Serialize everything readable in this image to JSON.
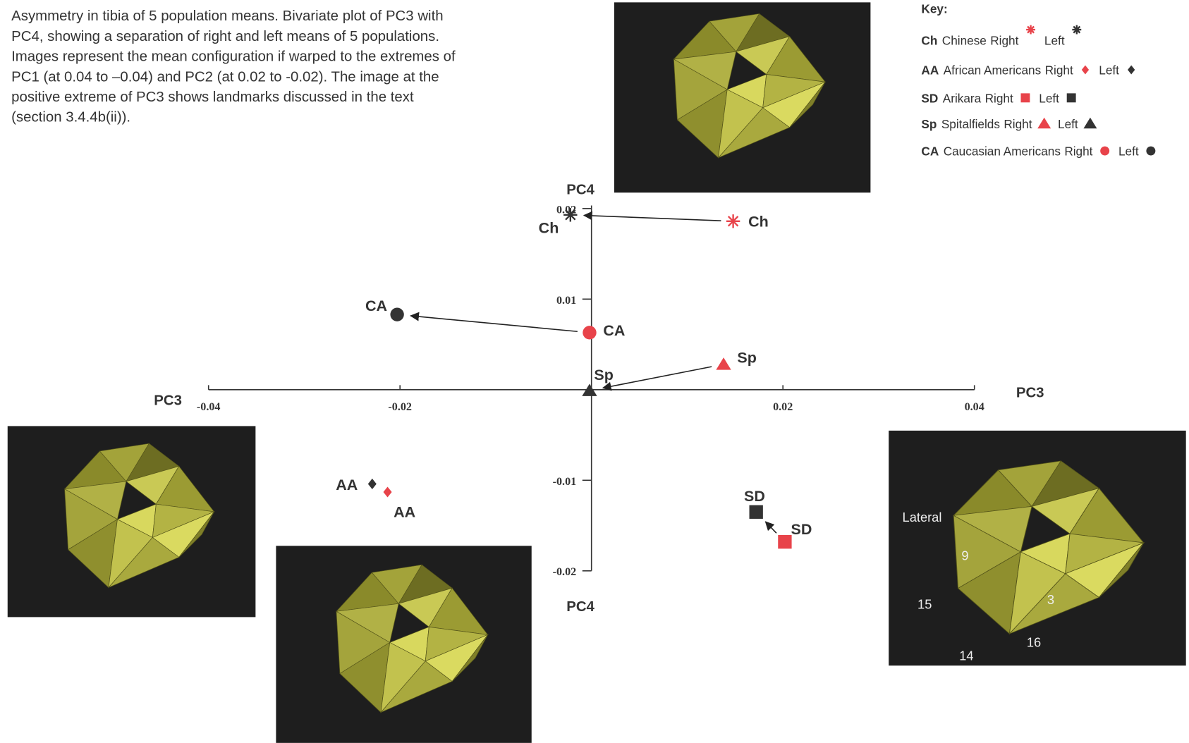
{
  "chart_data": {
    "type": "scatter",
    "caption_lines": [
      "Asymmetry in tibia of 5 population means. Bivariate plot of PC3 with",
      "PC4, showing a separation of right and left means of 5 populations.",
      "Images represent the mean configuration if warped to the extremes of",
      "PC1 (at 0.04 to –0.04) and PC2 (at 0.02 to -0.02). The image at the",
      "positive extreme of PC3 shows landmarks discussed in the text",
      "(section 3.4.4b(ii))."
    ],
    "x_label": "PC3",
    "y_label": "PC4",
    "xlim": [
      -0.04,
      0.04
    ],
    "xticks": [
      -0.04,
      -0.02,
      0.02,
      0.04
    ],
    "ylim": [
      -0.02,
      0.02
    ],
    "yticks": [
      -0.02,
      -0.01,
      0.01,
      0.02
    ],
    "key_title": "Key:",
    "right_label": "Right",
    "left_label": "Left",
    "series": [
      {
        "code": "Ch",
        "name": "Chinese",
        "marker": "asterisk",
        "right": {
          "color": "#e8434a",
          "x": 0.0148,
          "y": 0.0186
        },
        "left": {
          "color": "#333333",
          "x": -0.0022,
          "y": 0.0193
        }
      },
      {
        "code": "AA",
        "name": "African Americans",
        "marker": "diamond",
        "right": {
          "color": "#e8434a",
          "x": -0.0213,
          "y": -0.0113
        },
        "left": {
          "color": "#333333",
          "x": -0.0229,
          "y": -0.0104
        }
      },
      {
        "code": "SD",
        "name": "Arikara",
        "marker": "square",
        "right": {
          "color": "#e8434a",
          "x": 0.0202,
          "y": -0.0168
        },
        "left": {
          "color": "#333333",
          "x": 0.0172,
          "y": -0.0135
        }
      },
      {
        "code": "Sp",
        "name": "Spitalfields",
        "marker": "triangle",
        "right": {
          "color": "#e8434a",
          "x": 0.0138,
          "y": 0.0028
        },
        "left": {
          "color": "#333333",
          "x": -0.0002,
          "y": -0.0001
        }
      },
      {
        "code": "CA",
        "name": "Caucasian Americans",
        "marker": "circle",
        "right": {
          "color": "#e8434a",
          "x": -0.0002,
          "y": 0.0063
        },
        "left": {
          "color": "#333333",
          "x": -0.0203,
          "y": 0.0083
        }
      }
    ],
    "image_labels": [
      "Lateral",
      "9",
      "15",
      "3",
      "16",
      "14"
    ]
  }
}
